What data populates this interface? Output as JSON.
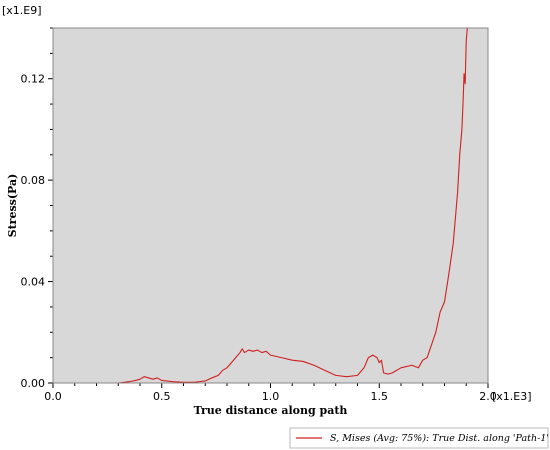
{
  "chart_data": {
    "type": "line",
    "xlabel": "True distance along path",
    "ylabel": "Stress(Pa)",
    "x_multiplier": "[x1.E3]",
    "y_multiplier": "[x1.E9]",
    "xlim": [
      0.0,
      2.0
    ],
    "ylim": [
      0.0,
      0.14
    ],
    "x_ticks": [
      "0.0",
      "0.5",
      "1.0",
      "1.5",
      "2.0"
    ],
    "x_tick_values": [
      0.0,
      0.5,
      1.0,
      1.5,
      2.0
    ],
    "y_ticks": [
      "0.00",
      "0.04",
      "0.08",
      "0.12"
    ],
    "y_tick_values": [
      0.0,
      0.04,
      0.08,
      0.12
    ],
    "grid": false,
    "legend_position": "bottom-right",
    "colors": {
      "plot_background": "#d8d8d8",
      "series_line": "#d02020",
      "frame": "#888888"
    },
    "series": [
      {
        "name": "S, Mises (Avg: 75%): True Dist. along 'Path-1'",
        "color": "#d02020",
        "x": [
          0.0,
          0.1,
          0.2,
          0.3,
          0.35,
          0.38,
          0.4,
          0.42,
          0.44,
          0.46,
          0.48,
          0.5,
          0.52,
          0.55,
          0.6,
          0.65,
          0.7,
          0.73,
          0.76,
          0.78,
          0.8,
          0.82,
          0.84,
          0.86,
          0.87,
          0.88,
          0.9,
          0.92,
          0.94,
          0.96,
          0.98,
          1.0,
          1.05,
          1.1,
          1.15,
          1.2,
          1.25,
          1.3,
          1.35,
          1.4,
          1.43,
          1.45,
          1.47,
          1.49,
          1.5,
          1.51,
          1.52,
          1.54,
          1.56,
          1.6,
          1.65,
          1.68,
          1.7,
          1.72,
          1.74,
          1.76,
          1.78,
          1.8,
          1.82,
          1.84,
          1.85,
          1.86,
          1.87,
          1.88,
          1.885,
          1.89,
          1.895,
          1.9,
          1.905
        ],
        "y": [
          0.0,
          0.0,
          0.0,
          0.0,
          0.0005,
          0.001,
          0.0015,
          0.0025,
          0.002,
          0.0015,
          0.002,
          0.001,
          0.0008,
          0.0005,
          0.0003,
          0.0003,
          0.0008,
          0.002,
          0.003,
          0.005,
          0.006,
          0.008,
          0.01,
          0.012,
          0.0135,
          0.012,
          0.013,
          0.0125,
          0.013,
          0.012,
          0.0125,
          0.011,
          0.01,
          0.009,
          0.0085,
          0.007,
          0.005,
          0.003,
          0.0025,
          0.003,
          0.006,
          0.01,
          0.011,
          0.01,
          0.008,
          0.009,
          0.004,
          0.0035,
          0.004,
          0.006,
          0.007,
          0.006,
          0.009,
          0.01,
          0.015,
          0.02,
          0.028,
          0.032,
          0.043,
          0.055,
          0.065,
          0.075,
          0.09,
          0.1,
          0.11,
          0.122,
          0.118,
          0.135,
          0.14
        ]
      }
    ]
  }
}
